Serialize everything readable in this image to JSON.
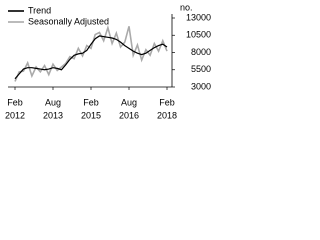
{
  "chart_data": {
    "type": "line",
    "y_axis_label": "no.",
    "x": [
      "2012-02",
      "2012-04",
      "2012-06",
      "2012-08",
      "2012-10",
      "2012-12",
      "2013-02",
      "2013-04",
      "2013-06",
      "2013-08",
      "2013-10",
      "2013-12",
      "2014-02",
      "2014-04",
      "2014-06",
      "2014-08",
      "2014-10",
      "2014-12",
      "2015-02",
      "2015-04",
      "2015-06",
      "2015-08",
      "2015-10",
      "2015-12",
      "2016-02",
      "2016-04",
      "2016-06",
      "2016-08",
      "2016-10",
      "2016-12",
      "2017-02",
      "2017-04",
      "2017-06",
      "2017-08",
      "2017-10",
      "2017-12",
      "2018-02"
    ],
    "series": [
      {
        "name": "Trend",
        "color": "#000000",
        "values": [
          4200,
          4900,
          5600,
          5800,
          5800,
          5700,
          5600,
          5500,
          5600,
          5800,
          5700,
          5500,
          6200,
          7000,
          7600,
          7800,
          7900,
          8300,
          9200,
          10000,
          10400,
          10300,
          10200,
          10100,
          9900,
          9500,
          9000,
          8600,
          8200,
          7900,
          7700,
          7900,
          8300,
          8700,
          9000,
          9200,
          8800
        ]
      },
      {
        "name": "Seasonally Adjusted",
        "color": "#aaaaaa",
        "values": [
          3800,
          5200,
          5300,
          6500,
          4600,
          5900,
          5200,
          6100,
          4800,
          6300,
          5400,
          5900,
          6400,
          7400,
          7100,
          8600,
          7500,
          9000,
          8600,
          10600,
          10900,
          9700,
          11600,
          9300,
          10800,
          8800,
          9500,
          11800,
          7600,
          9100,
          6900,
          8400,
          7600,
          9300,
          8200,
          9700,
          8200
        ]
      }
    ],
    "xticks": [
      {
        "value": "2012-02",
        "label": [
          "Feb",
          "2012"
        ]
      },
      {
        "value": "2013-08",
        "label": [
          "Aug",
          "2013"
        ]
      },
      {
        "value": "2015-02",
        "label": [
          "Feb",
          "2015"
        ]
      },
      {
        "value": "2016-08",
        "label": [
          "Aug",
          "2016"
        ]
      },
      {
        "value": "2018-02",
        "label": [
          "Feb",
          "2018"
        ]
      }
    ],
    "xlim": [
      "2012-02",
      "2018-02"
    ],
    "ylim": [
      3000,
      13000
    ],
    "yticks": [
      3000,
      5500,
      8000,
      10500,
      13000
    ]
  }
}
